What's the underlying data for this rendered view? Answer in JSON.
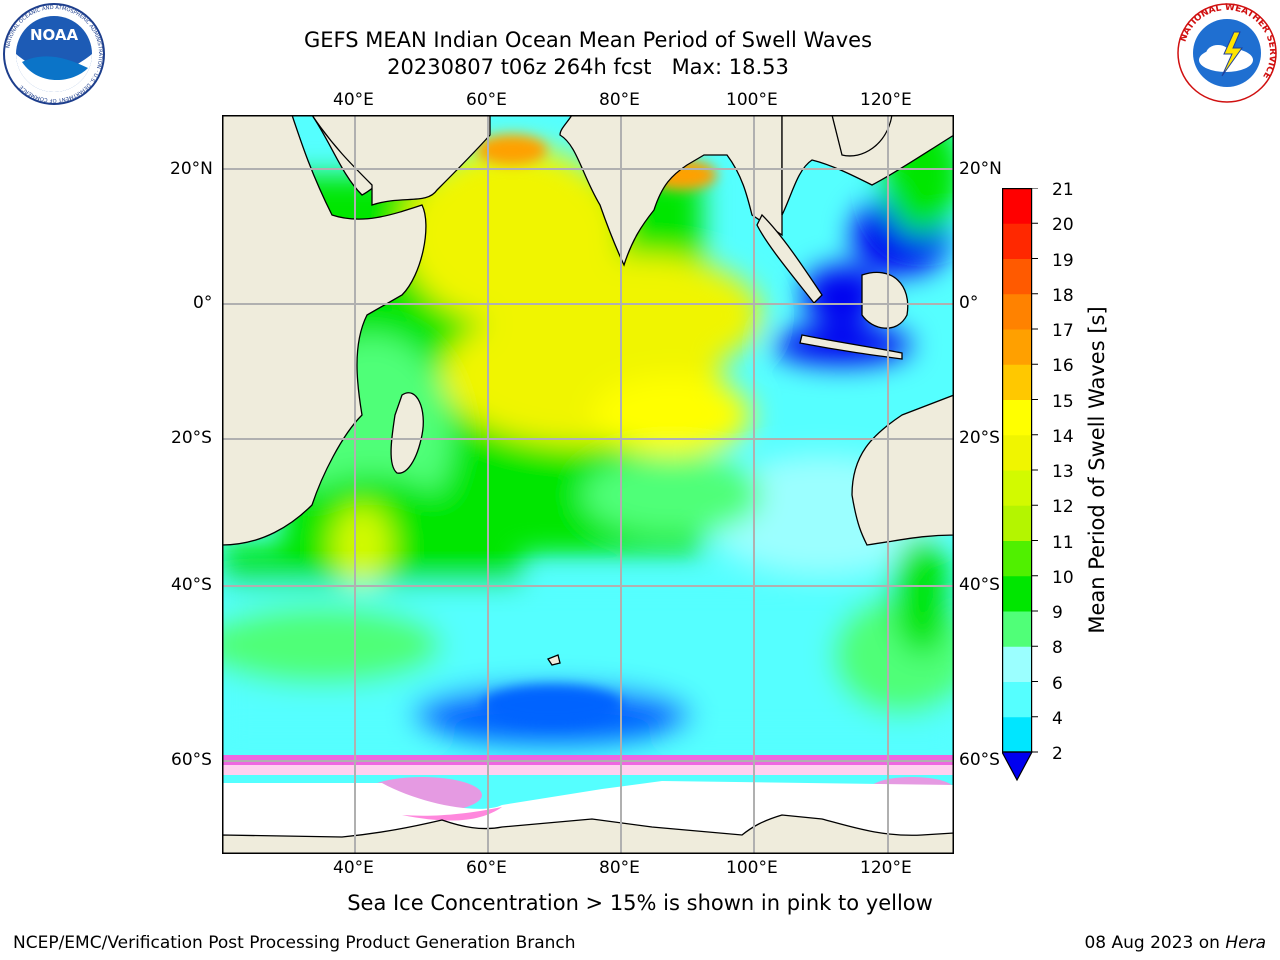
{
  "header": {
    "title_line1": "GEFS MEAN Indian Ocean Mean Period of Swell Waves",
    "title_line2": "20230807 t06z 264h fcst   Max: 18.53"
  },
  "logos": {
    "noaa": {
      "text": "NOAA",
      "ring_text": "NATIONAL OCEANIC AND ATMOSPHERIC ADMINISTRATION · U.S. DEPARTMENT OF COMMERCE"
    },
    "nws": {
      "ring_text": "NATIONAL WEATHER SERVICE"
    }
  },
  "map": {
    "lon_labels_top": [
      "40°E",
      "60°E",
      "80°E",
      "100°E",
      "120°E"
    ],
    "lon_labels_bottom": [
      "40°E",
      "60°E",
      "80°E",
      "100°E",
      "120°E"
    ],
    "lat_labels_left": [
      "20°N",
      "0°",
      "20°S",
      "40°S",
      "60°S"
    ],
    "lat_labels_right": [
      "20°N",
      "0°",
      "20°S",
      "40°S",
      "60°S"
    ],
    "land_color": "#efecdc",
    "ocean_default_color": "#55ffff"
  },
  "colorbar": {
    "title": "Mean Period of Swell Waves [s]",
    "tick_labels": [
      "2",
      "4",
      "6",
      "8",
      "9",
      "10",
      "11",
      "12",
      "13",
      "14",
      "15",
      "16",
      "17",
      "18",
      "19",
      "20",
      "21"
    ],
    "colors": [
      "#0064ff",
      "#00e6ff",
      "#55ffff",
      "#9bffff",
      "#50ff78",
      "#00e600",
      "#50f000",
      "#b4f500",
      "#d2fa00",
      "#f0f500",
      "#ffff00",
      "#ffc800",
      "#ffa000",
      "#ff8200",
      "#ff5a00",
      "#ff2800",
      "#ff0000"
    ],
    "under_color": "#0000f0"
  },
  "footer": {
    "ice_note": "Sea Ice Concentration > 15% is shown in pink to yellow",
    "left": "NCEP/EMC/Verification Post Processing Product Generation Branch",
    "right_prefix": "08 Aug 2023 on ",
    "right_machine": "Hera"
  }
}
